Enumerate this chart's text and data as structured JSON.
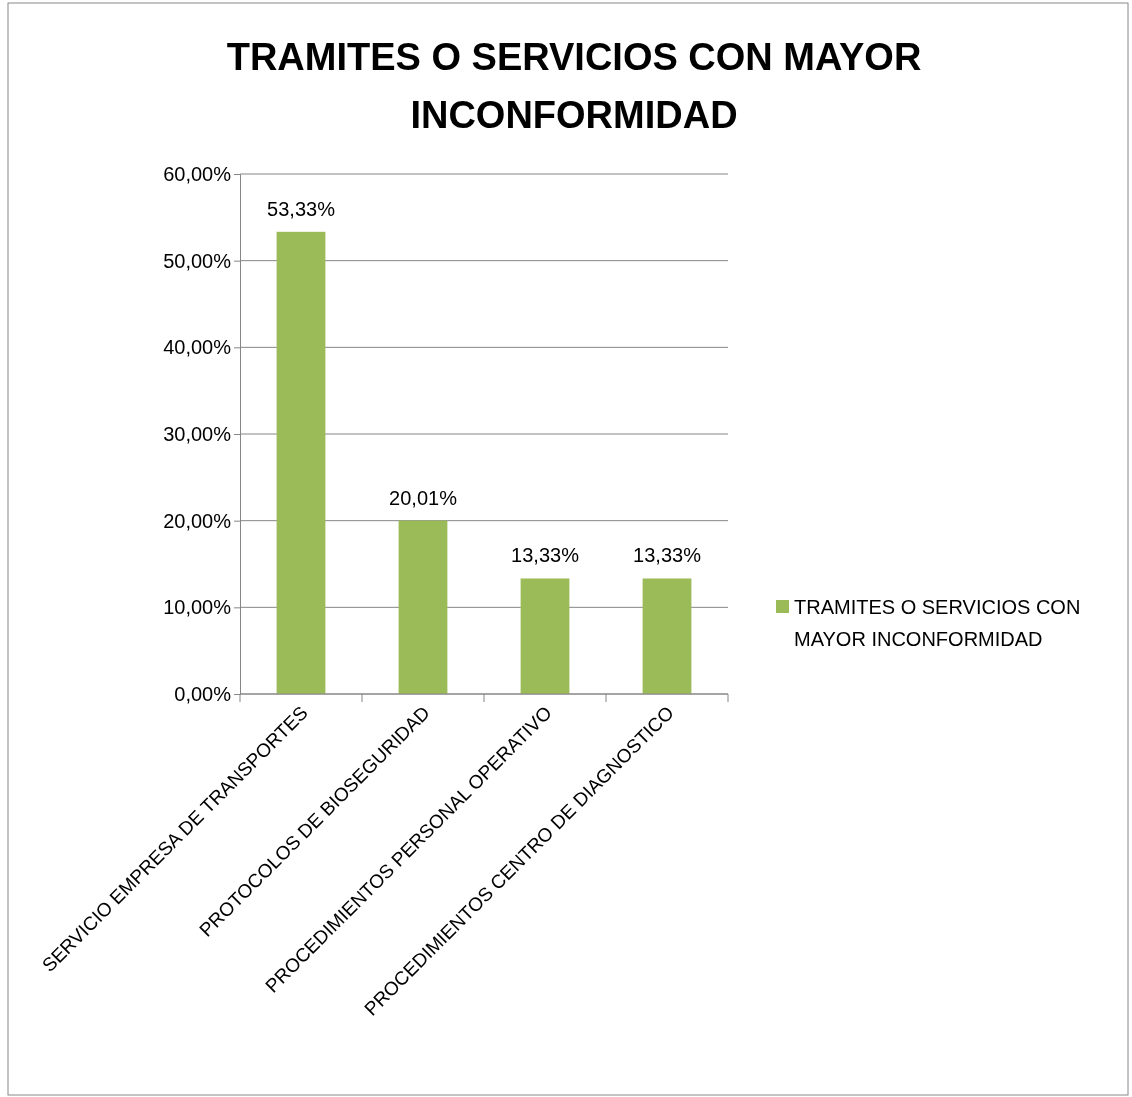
{
  "chart_data": {
    "type": "bar",
    "title": "TRAMITES O SERVICIOS  CON MAYOR INCONFORMIDAD",
    "categories": [
      "SERVICIO EMPRESA DE TRANSPORTES",
      "PROTOCOLOS DE BIOSEGURIDAD",
      "PROCEDIMIENTOS PERSONAL OPERATIVO",
      "PROCEDIMIENTOS CENTRO DE DIAGNOSTICO"
    ],
    "series": [
      {
        "name": "TRAMITES O SERVICIOS  CON MAYOR INCONFORMIDAD",
        "color": "#9bbb59",
        "values": [
          53.33,
          20.01,
          13.33,
          13.33
        ],
        "value_labels": [
          "53,33%",
          "20,01%",
          "13,33%",
          "13,33%"
        ]
      }
    ],
    "ylim": [
      0,
      60
    ],
    "yticks": [
      {
        "value": 0,
        "label": "0,00%"
      },
      {
        "value": 10,
        "label": "10,00%"
      },
      {
        "value": 20,
        "label": "20,00%"
      },
      {
        "value": 30,
        "label": "30,00%"
      },
      {
        "value": 40,
        "label": "40,00%"
      },
      {
        "value": 50,
        "label": "50,00%"
      },
      {
        "value": 60,
        "label": "60,00%"
      }
    ],
    "grid": "y",
    "legend": "right"
  }
}
